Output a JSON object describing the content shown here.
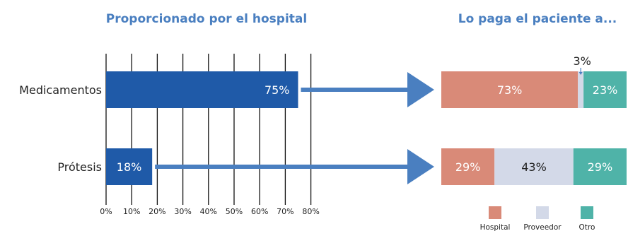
{
  "chart_data": [
    {
      "type": "bar",
      "orientation": "horizontal",
      "title": "Proporcionado por el hospital",
      "categories": [
        "Medicamentos",
        "Prótesis"
      ],
      "values": [
        75,
        18
      ],
      "value_labels": [
        "75%",
        "18%"
      ],
      "xlim": [
        0,
        80
      ],
      "x_ticks": [
        "0%",
        "10%",
        "20%",
        "30%",
        "40%",
        "50%",
        "60%",
        "70%",
        "80%"
      ],
      "grid": true,
      "color": "#1f5aa8"
    },
    {
      "type": "bar",
      "orientation": "horizontal",
      "stacked": true,
      "title": "Lo paga el paciente a...",
      "categories": [
        "Medicamentos",
        "Prótesis"
      ],
      "series": [
        {
          "name": "Hospital",
          "color": "#d98a78",
          "values": [
            73,
            29
          ],
          "labels": [
            "73%",
            "29%"
          ]
        },
        {
          "name": "Proveedor",
          "color": "#d3d9e8",
          "values": [
            3,
            43
          ],
          "labels": [
            "3%",
            "43%"
          ]
        },
        {
          "name": "Otro",
          "color": "#4fb3a8",
          "values": [
            23,
            29
          ],
          "labels": [
            "23%",
            "29%"
          ]
        }
      ],
      "legend": "bottom"
    }
  ]
}
